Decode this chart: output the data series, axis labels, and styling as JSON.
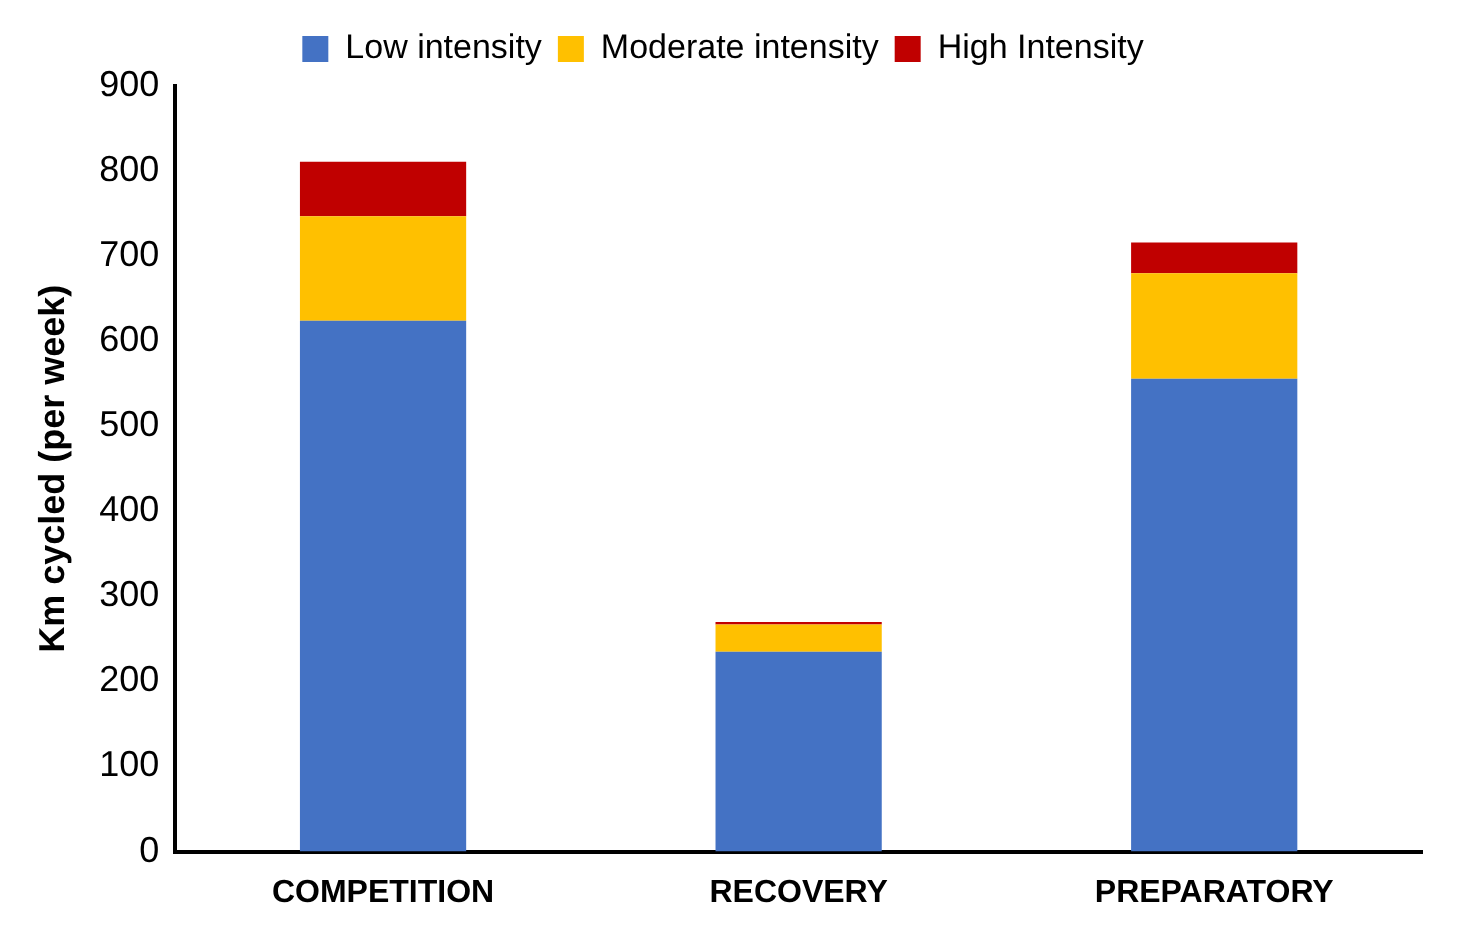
{
  "chart_data": {
    "type": "bar",
    "stacked": true,
    "ylabel": "Km cycled (per week)",
    "categories": [
      "COMPETITION",
      "RECOVERY",
      "PREPARATORY"
    ],
    "series": [
      {
        "name": "Low intensity",
        "color": "#4472c4",
        "values": [
          624,
          235,
          556
        ]
      },
      {
        "name": "Moderate intensity",
        "color": "#ffc000",
        "values": [
          123,
          32,
          124
        ]
      },
      {
        "name": "High Intensity",
        "color": "#c00000",
        "values": [
          64,
          3,
          36
        ]
      }
    ],
    "ylim": [
      0,
      900
    ],
    "yticks": [
      0,
      100,
      200,
      300,
      400,
      500,
      600,
      700,
      800,
      900
    ],
    "grid": false,
    "legend": "top"
  }
}
